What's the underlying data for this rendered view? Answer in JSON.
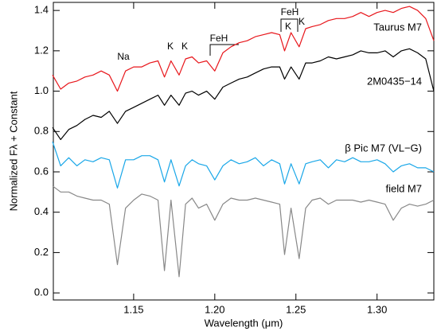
{
  "chart_data": {
    "type": "line",
    "xlabel": "Wavelength (μm)",
    "ylabel": "Normalized Fλ + Constant",
    "xlim": [
      1.1005,
      1.335
    ],
    "ylim": [
      -0.035,
      1.44
    ],
    "xticks": [
      1.15,
      {
        "value": 1.2,
        "label": "1.20"
      },
      1.25,
      {
        "value": 1.3,
        "label": "1.30"
      }
    ],
    "yticks": [
      {
        "value": 0,
        "label": "0.0"
      },
      0.2,
      0.4,
      0.6,
      0.8,
      {
        "value": 1,
        "label": "1.0"
      },
      1.2,
      1.4
    ],
    "annotations": [
      "Na",
      "K",
      "K",
      "FeH",
      "FeH",
      "K",
      "K"
    ],
    "x": [
      1.1,
      1.105,
      1.11,
      1.115,
      1.12,
      1.125,
      1.13,
      1.135,
      1.14,
      1.145,
      1.15,
      1.155,
      1.16,
      1.165,
      1.169,
      1.173,
      1.178,
      1.182,
      1.186,
      1.19,
      1.195,
      1.2,
      1.205,
      1.21,
      1.215,
      1.22,
      1.225,
      1.23,
      1.235,
      1.24,
      1.243,
      1.247,
      1.252,
      1.256,
      1.26,
      1.265,
      1.27,
      1.275,
      1.28,
      1.285,
      1.29,
      1.295,
      1.3,
      1.305,
      1.31,
      1.315,
      1.32,
      1.325,
      1.33,
      1.335
    ],
    "series": [
      {
        "name": "Taurus M7",
        "color": "#e8161b",
        "values": [
          1.08,
          1.01,
          1.04,
          1.05,
          1.07,
          1.08,
          1.1,
          1.08,
          1.0,
          1.1,
          1.12,
          1.12,
          1.14,
          1.15,
          1.07,
          1.15,
          1.08,
          1.16,
          1.17,
          1.14,
          1.15,
          1.1,
          1.19,
          1.22,
          1.24,
          1.25,
          1.27,
          1.28,
          1.29,
          1.28,
          1.2,
          1.29,
          1.22,
          1.31,
          1.32,
          1.33,
          1.35,
          1.36,
          1.36,
          1.37,
          1.39,
          1.37,
          1.39,
          1.4,
          1.39,
          1.41,
          1.42,
          1.4,
          1.36,
          1.25
        ]
      },
      {
        "name": "2M0435−14",
        "color": "#000000",
        "values": [
          0.82,
          0.76,
          0.81,
          0.83,
          0.86,
          0.88,
          0.87,
          0.9,
          0.84,
          0.9,
          0.92,
          0.94,
          0.96,
          0.98,
          0.93,
          0.98,
          0.93,
          0.99,
          1.0,
          0.98,
          1.0,
          0.96,
          1.02,
          1.04,
          1.06,
          1.07,
          1.09,
          1.11,
          1.12,
          1.12,
          1.06,
          1.12,
          1.06,
          1.14,
          1.14,
          1.15,
          1.17,
          1.16,
          1.17,
          1.18,
          1.2,
          1.19,
          1.19,
          1.2,
          1.17,
          1.2,
          1.21,
          1.19,
          1.16,
          1.0
        ]
      },
      {
        "name": "β Pic M7 (VL−G)",
        "color": "#1aa7e8",
        "values": [
          0.75,
          0.63,
          0.67,
          0.63,
          0.66,
          0.65,
          0.67,
          0.66,
          0.52,
          0.66,
          0.66,
          0.68,
          0.68,
          0.66,
          0.55,
          0.66,
          0.53,
          0.63,
          0.66,
          0.64,
          0.63,
          0.56,
          0.63,
          0.66,
          0.64,
          0.65,
          0.67,
          0.63,
          0.66,
          0.64,
          0.54,
          0.64,
          0.54,
          0.64,
          0.65,
          0.66,
          0.62,
          0.66,
          0.65,
          0.67,
          0.65,
          0.65,
          0.66,
          0.64,
          0.6,
          0.63,
          0.64,
          0.62,
          0.62,
          0.6
        ]
      },
      {
        "name": "field M7",
        "color": "#888888",
        "values": [
          0.53,
          0.5,
          0.5,
          0.48,
          0.47,
          0.46,
          0.46,
          0.44,
          0.14,
          0.42,
          0.46,
          0.49,
          0.48,
          0.46,
          0.11,
          0.46,
          0.08,
          0.44,
          0.47,
          0.42,
          0.44,
          0.36,
          0.44,
          0.47,
          0.46,
          0.46,
          0.47,
          0.46,
          0.45,
          0.44,
          0.19,
          0.42,
          0.17,
          0.42,
          0.46,
          0.47,
          0.44,
          0.46,
          0.46,
          0.46,
          0.45,
          0.46,
          0.45,
          0.44,
          0.36,
          0.42,
          0.44,
          0.43,
          0.44,
          0.46
        ]
      }
    ]
  }
}
